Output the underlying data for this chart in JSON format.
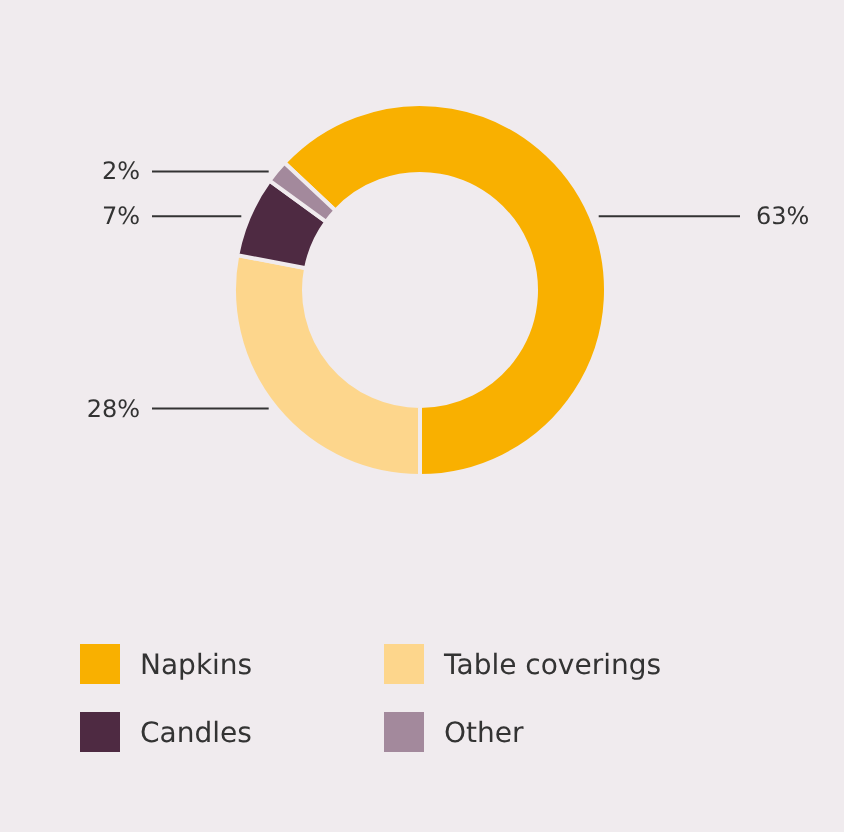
{
  "chart_data": {
    "type": "donut",
    "categories": [
      "Napkins",
      "Table coverings",
      "Candles",
      "Other"
    ],
    "values": [
      63,
      28,
      7,
      2
    ],
    "colors": [
      "#f9b000",
      "#fdd68c",
      "#4e2a42",
      "#a3899c"
    ],
    "value_labels": [
      "63%",
      "28%",
      "7%",
      "2%"
    ],
    "legend": "bottom"
  }
}
